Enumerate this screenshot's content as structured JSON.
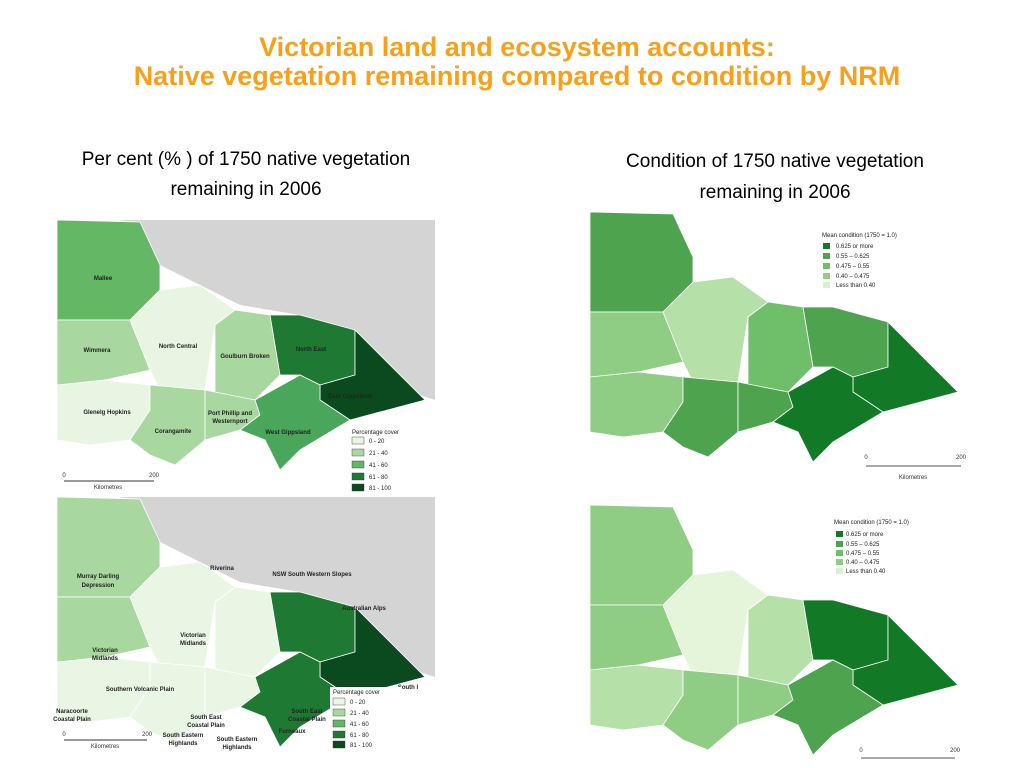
{
  "header": {
    "title_lines": [
      "Victorian land and ecosystem accounts:",
      "Native vegetation remaining compared to condition by NRM"
    ]
  },
  "left_caption": [
    "Per cent (% ) of 1750 native vegetation",
    "remaining in 2006"
  ],
  "right_caption": [
    "Condition of 1750 native vegetation",
    "remaining in 2006"
  ],
  "maps": [
    {
      "labels": [
        "Mallee",
        "Wimmera",
        "North Central",
        "Goulburn Broken",
        "North East",
        "East Gippsland",
        "Glenelg Hopkins",
        "Corangamite",
        "Port Phillip and",
        "Westernport",
        "West Gippsland"
      ],
      "legend_title": "Percentage cover",
      "legend_items": [
        "0 - 20",
        "21 - 40",
        "41 - 60",
        "61 - 80",
        "81 - 100"
      ],
      "scale": [
        0,
        200
      ],
      "scale_unit": "Kilometres"
    },
    {
      "legend_title": "Mean condition (1750 = 1.0)",
      "legend_items": [
        "0.625 or more",
        "0.55  – 0.625",
        "0.475 – 0.55",
        "0.40  – 0.475",
        "Less than 0.40"
      ],
      "scale": [
        0,
        200
      ],
      "scale_unit": "Kilometres"
    },
    {
      "labels": [
        "Murray Darling",
        "Depression",
        "Riverina",
        "NSW South Western Slopes",
        "Australian Alps",
        "Victorian",
        "Midlands",
        "Victorian",
        "Midlands",
        "Naracoorte",
        "Coastal Plain",
        "Southern Volcanic Plain",
        "South East",
        "Coastal Plain",
        "South East",
        "Coastal Plain",
        "South Eastern",
        "Highlands",
        "South Eastern",
        "Highlands",
        "Furneaux",
        "South I"
      ],
      "legend_title": "Percentage cover",
      "legend_items": [
        "0 - 20",
        "21 - 40",
        "41 - 60",
        "61 - 80",
        "81 - 100"
      ],
      "scale": [
        0,
        200
      ],
      "scale_unit": "Kilometres"
    },
    {
      "legend_title": "Mean condition (1750 = 1.0)",
      "legend_items": [
        "0.625 or more",
        "0.55  – 0.625",
        "0.475 – 0.55",
        "0.40  – 0.475",
        "Less than 0.40"
      ],
      "scale": [
        0,
        200
      ]
    }
  ]
}
